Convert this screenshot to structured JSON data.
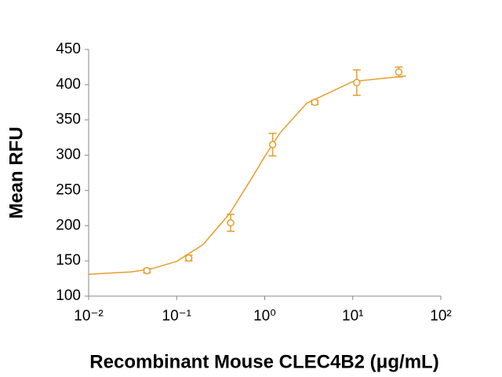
{
  "chart_data": {
    "type": "scatter",
    "xlabel": "Recombinant Mouse CLEC4B2 (μg/mL)",
    "ylabel": "Mean RFU",
    "x": [
      0.046,
      0.137,
      0.41,
      1.23,
      3.7,
      11.1,
      33.3
    ],
    "values": [
      136,
      154,
      204,
      315,
      375,
      403,
      418
    ],
    "errors": [
      3,
      4,
      12,
      16,
      3,
      18,
      7
    ],
    "fit": {
      "x": [
        0.01,
        0.03,
        0.05,
        0.1,
        0.2,
        0.4,
        0.75,
        1,
        1.5,
        3,
        10,
        40
      ],
      "y": [
        131,
        134.3,
        138.2,
        149.3,
        173.2,
        217.1,
        272,
        298.2,
        332,
        373.8,
        404.5,
        412.4
      ]
    },
    "color": "#E59E2C",
    "xscale": "log",
    "xlim": [
      0.01,
      100
    ],
    "xticks": [
      {
        "value": 0.01,
        "label": "10⁻²"
      },
      {
        "value": 0.1,
        "label": "10⁻¹"
      },
      {
        "value": 1,
        "label": "10⁰"
      },
      {
        "value": 10,
        "label": "10¹"
      },
      {
        "value": 100,
        "label": "10²"
      }
    ],
    "ylim": [
      100,
      450
    ],
    "yticks": [
      100,
      150,
      200,
      250,
      300,
      350,
      400,
      450
    ]
  }
}
